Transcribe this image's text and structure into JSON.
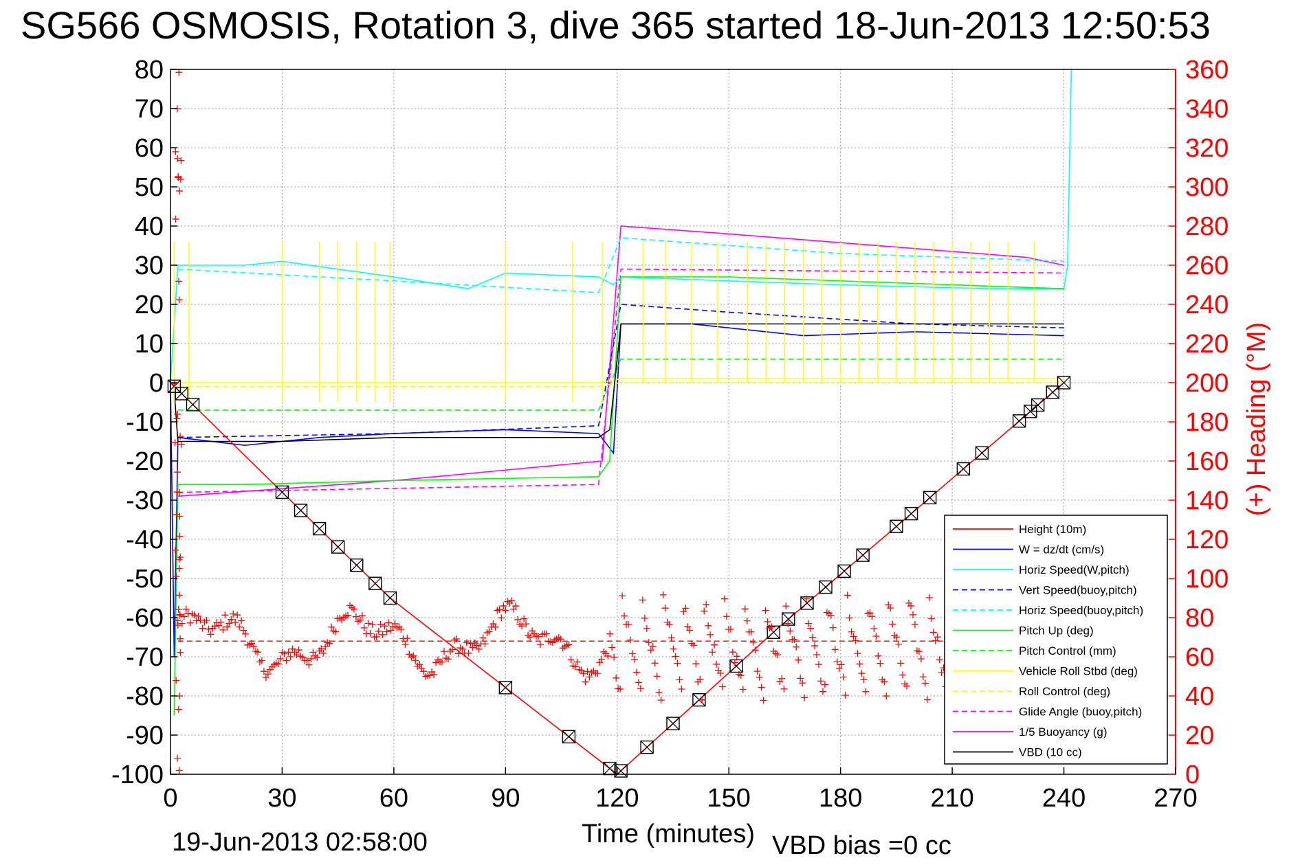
{
  "title": "SG566 OSMOSIS, Rotation 3, dive 365 started 18-Jun-2013 12:50:53",
  "footer": {
    "end_time": "19-Jun-2013 02:58:00",
    "vbd_bias": "VBD bias =0 cc"
  },
  "colors": {
    "height": "#ff0000",
    "w": "#0000ff",
    "cyan": "#00ffff",
    "green": "#00ff00",
    "yellow": "#ffff00",
    "magenta": "#ff00ff",
    "vbd": "#000000",
    "heading": "#ff0000"
  },
  "chart_data": {
    "type": "line",
    "xlabel": "Time (minutes)",
    "ylabel_right": "(+) Heading (°M)",
    "xlim": [
      0,
      270
    ],
    "ylim": [
      -100,
      80
    ],
    "ylim_right": [
      0,
      360
    ],
    "xticks": [
      0,
      30,
      60,
      90,
      120,
      150,
      180,
      210,
      240,
      270
    ],
    "yticks": [
      80,
      70,
      60,
      50,
      40,
      30,
      20,
      10,
      0,
      -10,
      -20,
      -30,
      -40,
      -50,
      -60,
      -70,
      -80,
      -90,
      -100
    ],
    "yticks_right": [
      360,
      340,
      320,
      300,
      280,
      260,
      240,
      220,
      200,
      180,
      160,
      140,
      120,
      100,
      80,
      60,
      40,
      20,
      0
    ],
    "grid": true,
    "legend_position": "bottom-right",
    "legend": [
      {
        "label": "Height (10m)",
        "color": "#ff0000",
        "style": "solid"
      },
      {
        "label": "W = dz/dt (cm/s)",
        "color": "#0000ff",
        "style": "solid"
      },
      {
        "label": "Horiz Speed(W,pitch)",
        "color": "#00ffff",
        "style": "solid"
      },
      {
        "label": "Vert Speed(buoy,pitch)",
        "color": "#0000ff",
        "style": "dashed"
      },
      {
        "label": "Horiz Speed(buoy,pitch)",
        "color": "#00ffff",
        "style": "dashed"
      },
      {
        "label": "Pitch Up (deg)",
        "color": "#00ff00",
        "style": "solid"
      },
      {
        "label": "Pitch Control (mm)",
        "color": "#00ff00",
        "style": "dashed"
      },
      {
        "label": "Vehicle Roll Stbd (deg)",
        "color": "#ffff00",
        "style": "solid"
      },
      {
        "label": "Roll Control (deg)",
        "color": "#ffff00",
        "style": "dashed"
      },
      {
        "label": "Glide Angle (buoy,pitch)",
        "color": "#ff00ff",
        "style": "dashed"
      },
      {
        "label": "1/5 Buoyancy (g)",
        "color": "#ff00ff",
        "style": "solid"
      },
      {
        "label": "VBD (10 cc)",
        "color": "#000000",
        "style": "solid"
      }
    ],
    "series": [
      {
        "name": "Height (10m)",
        "x": [
          0,
          59,
          120,
          164,
          240
        ],
        "y": [
          0,
          -55,
          -100,
          -62,
          0
        ]
      },
      {
        "name": "W = dz/dt (cm/s)",
        "x": [
          0,
          1,
          2,
          20,
          40,
          60,
          90,
          115,
          119,
          121,
          140,
          170,
          200,
          240
        ],
        "y": [
          0,
          -70,
          -14,
          -16,
          -14,
          -13,
          -12,
          -13,
          -18,
          15,
          15,
          12,
          13,
          12
        ]
      },
      {
        "name": "Horiz Speed(W,pitch)",
        "x": [
          0,
          2,
          20,
          30,
          60,
          80,
          90,
          115,
          119,
          121,
          150,
          180,
          220,
          240,
          241,
          242
        ],
        "y": [
          0,
          30,
          30,
          31,
          27,
          24,
          28,
          27,
          25,
          27,
          26,
          25,
          24,
          24,
          30,
          80
        ]
      },
      {
        "name": "Vert Speed(buoy,pitch)",
        "x": [
          2,
          60,
          115,
          121,
          150,
          200,
          240
        ],
        "y": [
          -14,
          -13,
          -11,
          20,
          18,
          15,
          14
        ]
      },
      {
        "name": "Horiz Speed(buoy,pitch)",
        "x": [
          2,
          60,
          115,
          121,
          180,
          240
        ],
        "y": [
          29,
          26,
          23,
          37,
          33,
          31
        ]
      },
      {
        "name": "Pitch Up (deg)",
        "x": [
          1,
          2,
          20,
          60,
          115,
          118,
          121,
          150,
          240
        ],
        "y": [
          -85,
          -26,
          -26,
          -25,
          -24,
          -20,
          27,
          27,
          24
        ]
      },
      {
        "name": "Pitch Control (mm)",
        "x": [
          2,
          115,
          121,
          240
        ],
        "y": [
          -7,
          -7,
          6,
          6
        ]
      },
      {
        "name": "Vehicle Roll Stbd (deg)",
        "x": [
          2,
          115,
          121,
          240
        ],
        "y": [
          0,
          0,
          1,
          1
        ]
      },
      {
        "name": "Roll Control (deg)",
        "x": [
          2,
          115,
          121,
          240
        ],
        "y": [
          -1,
          -1,
          0,
          0
        ]
      },
      {
        "name": "Glide Angle (buoy,pitch)",
        "x": [
          2,
          60,
          115,
          121,
          240
        ],
        "y": [
          -28,
          -27,
          -26,
          29,
          28
        ]
      },
      {
        "name": "1/5 Buoyancy (g)",
        "x": [
          2,
          60,
          116,
          121,
          150,
          230,
          240
        ],
        "y": [
          -29,
          -25,
          -20,
          40,
          38,
          32,
          30
        ]
      },
      {
        "name": "VBD (10 cc)",
        "x": [
          1,
          2,
          30,
          60,
          115,
          118,
          121,
          150,
          240
        ],
        "y": [
          -2,
          -15,
          -15,
          -14,
          -14,
          -12,
          15,
          15,
          15
        ]
      }
    ],
    "heading_mean_deg": 68
  }
}
